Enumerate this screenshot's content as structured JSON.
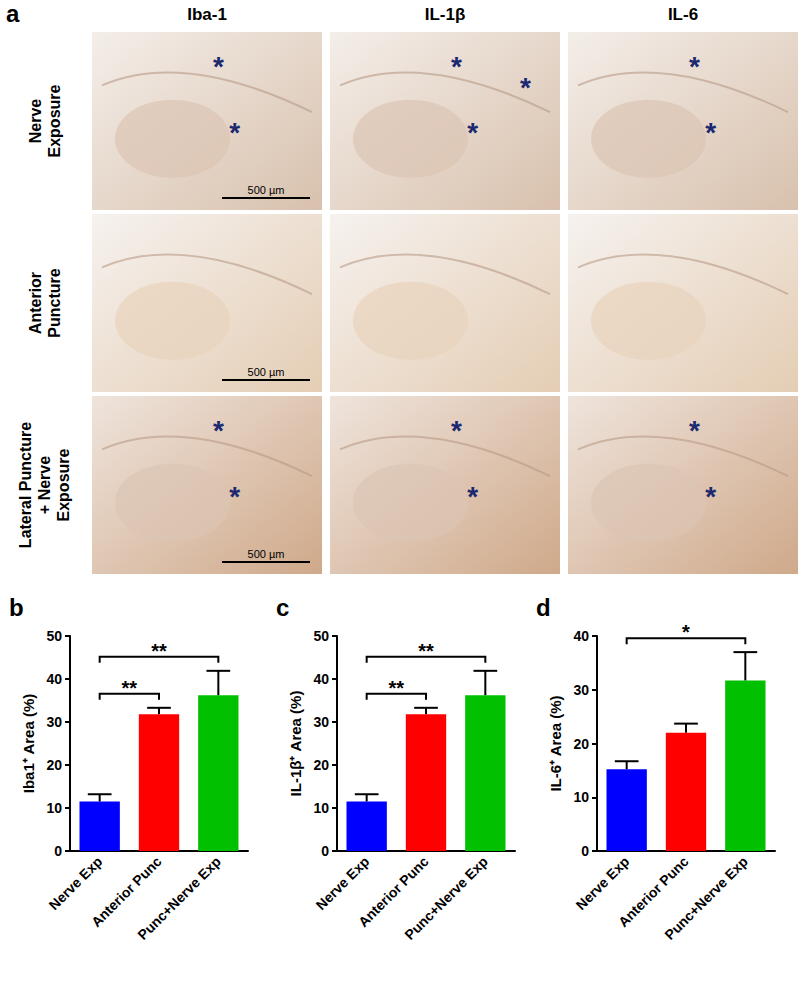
{
  "figure": {
    "panel_a": {
      "label": "a",
      "columns": [
        "Iba-1",
        "IL-1β",
        "IL-6"
      ],
      "asterisk": "*",
      "rows": [
        {
          "lines": [
            "Nerve",
            "Exposure"
          ],
          "scale_bar": "500 µm",
          "asterisks": [
            2,
            3,
            2
          ]
        },
        {
          "lines": [
            "Anterior",
            "Puncture"
          ],
          "scale_bar": "500 µm",
          "asterisks": [
            0,
            0,
            0
          ]
        },
        {
          "lines": [
            "Lateral Puncture",
            "+ Nerve",
            "Exposure"
          ],
          "scale_bar": "500 µm",
          "asterisks": [
            2,
            2,
            2
          ]
        }
      ]
    }
  },
  "chart_data": [
    {
      "type": "bar",
      "title": "b",
      "y_label": "Iba1⁺ Area (%)",
      "categories": [
        "Nerve Exp",
        "Anterior Punc",
        "Punc+Nerve Exp"
      ],
      "values": [
        11.5,
        31.8,
        36.2
      ],
      "errors": [
        1.7,
        1.5,
        5.7
      ],
      "colors": [
        "#0000ff",
        "#ff0000",
        "#00c000"
      ],
      "ylim": [
        0,
        50
      ],
      "yticks": [
        0,
        10,
        20,
        30,
        40,
        50
      ],
      "grid": false,
      "annotations": [
        {
          "from": "Nerve Exp",
          "to": "Anterior Punc",
          "text": "**"
        },
        {
          "from": "Nerve Exp",
          "to": "Punc+Nerve Exp",
          "text": "**"
        }
      ]
    },
    {
      "type": "bar",
      "title": "c",
      "y_label": "IL-1β⁺ Area (%)",
      "categories": [
        "Nerve Exp",
        "Anterior Punc",
        "Punc+Nerve Exp"
      ],
      "values": [
        11.5,
        31.8,
        36.2
      ],
      "errors": [
        1.7,
        1.5,
        5.7
      ],
      "colors": [
        "#0000ff",
        "#ff0000",
        "#00c000"
      ],
      "ylim": [
        0,
        50
      ],
      "yticks": [
        0,
        10,
        20,
        30,
        40,
        50
      ],
      "grid": false,
      "annotations": [
        {
          "from": "Nerve Exp",
          "to": "Anterior Punc",
          "text": "**"
        },
        {
          "from": "Nerve Exp",
          "to": "Punc+Nerve Exp",
          "text": "**"
        }
      ]
    },
    {
      "type": "bar",
      "title": "d",
      "y_label": "IL-6⁺ Area (%)",
      "categories": [
        "Nerve Exp",
        "Anterior Punc",
        "Punc+Nerve Exp"
      ],
      "values": [
        15.2,
        22.0,
        31.7
      ],
      "errors": [
        1.5,
        1.7,
        5.3
      ],
      "colors": [
        "#0000ff",
        "#ff0000",
        "#00c000"
      ],
      "ylim": [
        0,
        40
      ],
      "yticks": [
        0,
        10,
        20,
        30,
        40
      ],
      "grid": false,
      "annotations": [
        {
          "from": "Nerve Exp",
          "to": "Punc+Nerve Exp",
          "text": "*"
        }
      ]
    }
  ]
}
